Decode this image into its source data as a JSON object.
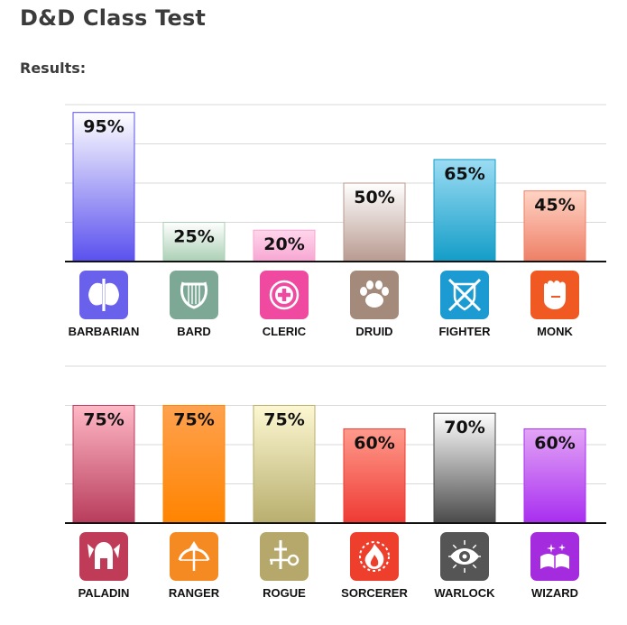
{
  "page": {
    "title": "D&D Class Test",
    "results_label": "Results:"
  },
  "chart_data": [
    {
      "type": "bar",
      "categories": [
        "BARBARIAN",
        "BARD",
        "CLERIC",
        "DRUID",
        "FIGHTER",
        "MONK"
      ],
      "values": [
        95,
        25,
        20,
        50,
        65,
        45
      ],
      "value_labels": [
        "95%",
        "25%",
        "20%",
        "50%",
        "65%",
        "45%"
      ],
      "icons": [
        "double-axe-icon",
        "lyre-icon",
        "holy-symbol-icon",
        "paw-print-icon",
        "crossed-swords-shield-icon",
        "fist-icon"
      ],
      "colors": [
        [
          "#ffffff",
          "#5a50ee"
        ],
        [
          "#ffffff",
          "#aacfb4"
        ],
        [
          "#ffd6ec",
          "#f7a6d2"
        ],
        [
          "#ffffff",
          "#b89a90"
        ],
        [
          "#9bdcf3",
          "#139dc8"
        ],
        [
          "#ffd3c4",
          "#ee7f66"
        ]
      ],
      "icon_colors": [
        "#6960ec",
        "#7ea896",
        "#ef4aa0",
        "#a48a7a",
        "#1b9bd2",
        "#f05a22"
      ],
      "ylim": [
        0,
        100
      ],
      "grid": true
    },
    {
      "type": "bar",
      "categories": [
        "PALADIN",
        "RANGER",
        "ROGUE",
        "SORCERER",
        "WARLOCK",
        "WIZARD"
      ],
      "values": [
        75,
        75,
        75,
        60,
        70,
        60
      ],
      "value_labels": [
        "75%",
        "75%",
        "75%",
        "60%",
        "70%",
        "60%"
      ],
      "icons": [
        "winged-helmet-icon",
        "bow-arrow-icon",
        "dagger-key-icon",
        "flame-icon",
        "evil-eye-icon",
        "spellbook-icon"
      ],
      "colors": [
        [
          "#ffb8c6",
          "#b83c5c"
        ],
        [
          "#ffa14f",
          "#ff8400"
        ],
        [
          "#fdf8d2",
          "#b8ae6e"
        ],
        [
          "#ff9a8c",
          "#ee3a33"
        ],
        [
          "#ffffff",
          "#4a4a4a"
        ],
        [
          "#e3a4f6",
          "#a82ef0"
        ]
      ],
      "icon_colors": [
        "#c03b58",
        "#f68a22",
        "#b5a86a",
        "#ee3e2c",
        "#555555",
        "#a52bdf"
      ],
      "ylim": [
        0,
        100
      ],
      "grid": true
    }
  ]
}
